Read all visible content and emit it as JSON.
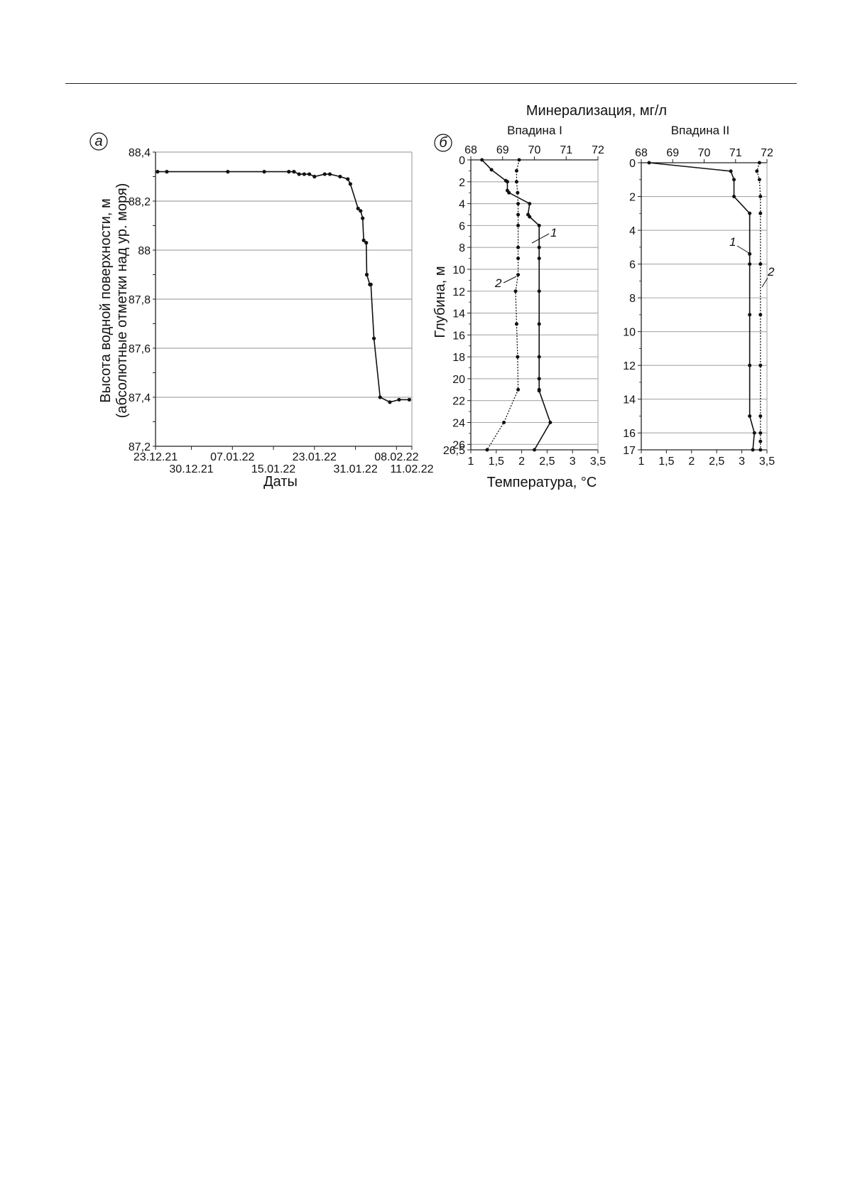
{
  "figure": {
    "panel_a_letter": "а",
    "panel_b_letter": "б",
    "mineral_axis_title": "Минерализация, мг/л",
    "depth_axis_title": "Глубина, м",
    "temperature_axis_title": "Температура, °С",
    "curve_label_1": "1",
    "curve_label_2": "2"
  },
  "chart_data": [
    {
      "id": "panel-a",
      "type": "line",
      "ylabel_line1": "Высота водной поверхности, м",
      "ylabel_line2": "(абсолютные отметки над ур. моря)",
      "xlabel": "Даты",
      "ylim": [
        87.2,
        88.4
      ],
      "xlim_days": [
        0,
        50
      ],
      "grid": true,
      "x_ticks": [
        {
          "label": "23.12.21",
          "day": 0,
          "row": 0
        },
        {
          "label": "30.12.21",
          "day": 7,
          "row": 1
        },
        {
          "label": "07.01.22",
          "day": 15,
          "row": 0
        },
        {
          "label": "15.01.22",
          "day": 23,
          "row": 1
        },
        {
          "label": "23.01.22",
          "day": 31,
          "row": 0
        },
        {
          "label": "31.01.22",
          "day": 39,
          "row": 1
        },
        {
          "label": "08.02.22",
          "day": 47,
          "row": 0
        },
        {
          "label": "11.02.22",
          "day": 50,
          "row": 1
        }
      ],
      "y_ticks": [
        "87,2",
        "87,4",
        "87,6",
        "87,8",
        "88",
        "88,2",
        "88,4"
      ],
      "y_tick_values": [
        87.2,
        87.4,
        87.6,
        87.8,
        88.0,
        88.2,
        88.4
      ],
      "series": [
        {
          "x": [
            0.4,
            2.2,
            14.1,
            21.2,
            26.0,
            27.0,
            28.0,
            29.0,
            30.0,
            31.0,
            33.0,
            34.0,
            36.0,
            37.5,
            38.0,
            39.5,
            40.0,
            40.4,
            40.6,
            41.1,
            41.2,
            41.8,
            42.0,
            42.6,
            43.8,
            45.7,
            47.5,
            49.5
          ],
          "y": [
            88.32,
            88.32,
            88.32,
            88.32,
            88.32,
            88.32,
            88.31,
            88.31,
            88.31,
            88.3,
            88.31,
            88.31,
            88.3,
            88.29,
            88.27,
            88.17,
            88.16,
            88.13,
            88.04,
            88.03,
            87.9,
            87.86,
            87.86,
            87.64,
            87.4,
            87.38,
            87.39,
            87.39
          ]
        }
      ]
    },
    {
      "id": "panel-b1",
      "type": "line",
      "title": "Впадина I",
      "x_top_ticks": [
        "68",
        "69",
        "70",
        "71",
        "72"
      ],
      "x_top_values": [
        68,
        69,
        70,
        71,
        72
      ],
      "x_bottom_ticks": [
        "1",
        "1,5",
        "2",
        "2,5",
        "3",
        "3,5"
      ],
      "x_bottom_values": [
        1,
        1.5,
        2,
        2.5,
        3,
        3.5
      ],
      "y_ticks": [
        "0",
        "2",
        "4",
        "6",
        "8",
        "10",
        "12",
        "14",
        "16",
        "18",
        "20",
        "22",
        "24",
        "26",
        "26,5"
      ],
      "y_tick_values": [
        0,
        2,
        4,
        6,
        8,
        10,
        12,
        14,
        16,
        18,
        20,
        22,
        24,
        26,
        26.5
      ],
      "ylim": [
        0,
        26.5
      ],
      "xlim_mineral": [
        68,
        72
      ],
      "xlim_temperature": [
        1,
        3.5
      ],
      "grid": true,
      "series": [
        {
          "label": "1",
          "axis": "mineralization",
          "x": [
            68.35,
            68.65,
            69.1,
            69.15,
            69.15,
            69.2,
            69.85,
            69.8,
            69.85,
            70.15,
            70.15,
            70.15,
            70.15,
            70.15,
            70.15,
            70.15,
            70.15,
            70.15,
            70.5,
            70.0
          ],
          "y": [
            0,
            0.9,
            1.9,
            2,
            2.8,
            3,
            4,
            5,
            5.2,
            6,
            8,
            9,
            12,
            15,
            18,
            20,
            21,
            21.1,
            24,
            26.5
          ]
        },
        {
          "label": "2",
          "axis": "temperature",
          "x": [
            1.95,
            1.9,
            1.9,
            1.92,
            1.93,
            1.93,
            1.93,
            1.93,
            1.93,
            1.93,
            1.88,
            1.9,
            1.92,
            1.93,
            1.65,
            1.32
          ],
          "y": [
            0,
            1,
            2,
            3,
            4,
            5,
            6,
            8,
            9,
            10.5,
            12,
            15,
            18,
            21,
            24,
            26.5
          ]
        }
      ]
    },
    {
      "id": "panel-b2",
      "type": "line",
      "title": "Впадина II",
      "x_top_ticks": [
        "68",
        "69",
        "70",
        "71",
        "72"
      ],
      "x_top_values": [
        68,
        69,
        70,
        71,
        72
      ],
      "x_bottom_ticks": [
        "1",
        "1,5",
        "2",
        "2,5",
        "3",
        "3,5"
      ],
      "x_bottom_values": [
        1,
        1.5,
        2,
        2.5,
        3,
        3.5
      ],
      "y_ticks": [
        "0",
        "2",
        "4",
        "6",
        "8",
        "10",
        "12",
        "14",
        "16",
        "17"
      ],
      "y_tick_values": [
        0,
        2,
        4,
        6,
        8,
        10,
        12,
        14,
        16,
        17
      ],
      "ylim": [
        0,
        17
      ],
      "xlim_mineral": [
        68,
        72
      ],
      "xlim_temperature": [
        1,
        3.5
      ],
      "grid": true,
      "series": [
        {
          "label": "1",
          "axis": "mineralization",
          "x": [
            68.25,
            70.85,
            70.95,
            70.95,
            71.45,
            71.45,
            71.45,
            71.45,
            71.45,
            71.45,
            71.6,
            71.55
          ],
          "y": [
            0,
            0.5,
            1,
            2,
            3,
            5.4,
            6,
            9,
            12,
            15,
            16,
            17
          ],
          "left_axis_labels": true
        },
        {
          "label": "2",
          "axis": "temperature",
          "x": [
            3.35,
            3.3,
            3.35,
            3.37,
            3.37,
            3.37,
            3.37,
            3.37,
            3.37,
            3.37,
            3.37,
            3.37
          ],
          "y": [
            0,
            0.5,
            1,
            2,
            3,
            6,
            9,
            12,
            15,
            16,
            16.5,
            17
          ]
        }
      ]
    }
  ]
}
